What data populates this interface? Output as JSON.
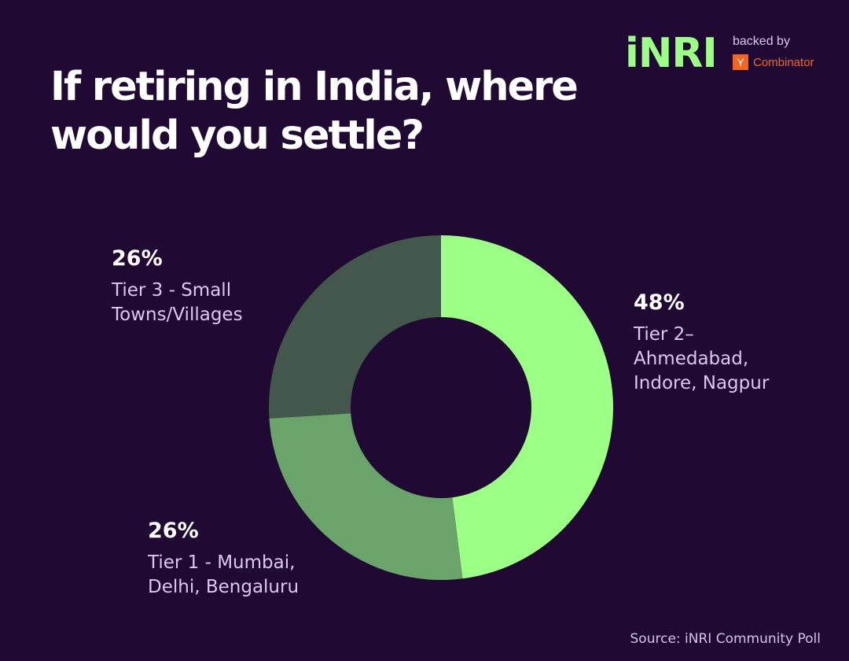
{
  "brand": {
    "name": "iNRI",
    "backed_by": "backed by",
    "yc_letter": "Y",
    "yc_name": "Combinator"
  },
  "source": "Source: iNRI Community Poll",
  "colors": {
    "background": "#200a33",
    "brand": "#9cff86",
    "yc_orange": "#f26625"
  },
  "chart_data": {
    "type": "pie",
    "variant": "donut",
    "title": "If retiring in India, where would you settle?",
    "categories": [
      "Tier 2– Ahmedabad, Indore, Nagpur",
      "Tier 1 - Mumbai, Delhi, Bengaluru",
      "Tier 3 - Small Towns/Villages"
    ],
    "values": [
      48,
      26,
      26
    ],
    "value_labels": [
      "48%",
      "26%",
      "26%"
    ],
    "label_lines": [
      [
        "Tier 2–",
        "Ahmedabad,",
        "Indore, Nagpur"
      ],
      [
        "Tier 1 - Mumbai,",
        "Delhi, Bengaluru"
      ],
      [
        "Tier 3 - Small",
        "Towns/Villages"
      ]
    ],
    "colors": [
      "#9cff86",
      "#6ba46b",
      "#44574c"
    ],
    "legend": "none"
  }
}
